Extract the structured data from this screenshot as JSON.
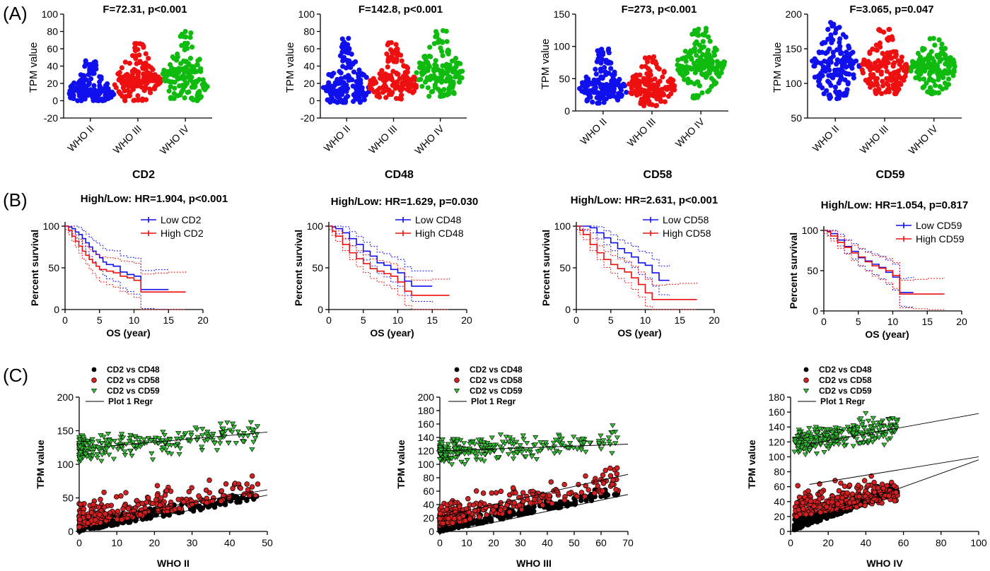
{
  "panel_labels": [
    "(A)",
    "(B)",
    "(C)"
  ],
  "colors": {
    "blue": "#1010ee",
    "red": "#ee1010",
    "green": "#10bb10",
    "black": "#000000",
    "red_marker": "#d42020",
    "green_marker": "#30c030"
  },
  "chart_data": [
    {
      "type": "scatter",
      "panel": "A",
      "title": "F=72.31, p<0.001",
      "gene": "CD2",
      "ylabel": "TPM value",
      "ylim": [
        -20,
        100
      ],
      "yticks": [
        -20,
        0,
        20,
        40,
        60,
        80,
        100
      ],
      "categories": [
        "WHO II",
        "WHO III",
        "WHO IV"
      ],
      "series": [
        {
          "name": "WHO II",
          "color": "#1010ee",
          "min": 0,
          "max": 46,
          "center": 10
        },
        {
          "name": "WHO III",
          "color": "#ee1010",
          "min": 0,
          "max": 66,
          "center": 22
        },
        {
          "name": "WHO IV",
          "color": "#10bb10",
          "min": 0,
          "max": 80,
          "center": 25
        }
      ]
    },
    {
      "type": "scatter",
      "panel": "A",
      "title": "F=142.8, p<0.001",
      "gene": "CD48",
      "ylabel": "TPM value",
      "ylim": [
        -20,
        100
      ],
      "yticks": [
        -20,
        0,
        20,
        40,
        60,
        80,
        100
      ],
      "categories": [
        "WHO II",
        "WHO III",
        "WHO IV"
      ],
      "series": [
        {
          "name": "WHO II",
          "color": "#1010ee",
          "min": -2,
          "max": 72,
          "center": 14
        },
        {
          "name": "WHO III",
          "color": "#ee1010",
          "min": 2,
          "max": 67,
          "center": 18
        },
        {
          "name": "WHO IV",
          "color": "#10bb10",
          "min": 5,
          "max": 81,
          "center": 32
        }
      ]
    },
    {
      "type": "scatter",
      "panel": "A",
      "title": "F=273, p<0.001",
      "gene": "CD58",
      "ylabel": "TPM value",
      "ylim": [
        0,
        150
      ],
      "yticks": [
        0,
        50,
        100,
        150
      ],
      "categories": [
        "WHO II",
        "WHO III",
        "WHO IV"
      ],
      "series": [
        {
          "name": "WHO II",
          "color": "#1010ee",
          "min": 12,
          "max": 96,
          "center": 35
        },
        {
          "name": "WHO III",
          "color": "#ee1010",
          "min": 8,
          "max": 84,
          "center": 38
        },
        {
          "name": "WHO IV",
          "color": "#10bb10",
          "min": 20,
          "max": 128,
          "center": 70
        }
      ]
    },
    {
      "type": "scatter",
      "panel": "A",
      "title": "F=3.065, p=0.047",
      "gene": "CD59",
      "ylabel": "TPM value",
      "ylim": [
        50,
        200
      ],
      "yticks": [
        50,
        100,
        150,
        200
      ],
      "categories": [
        "WHO II",
        "WHO III",
        "WHO IV"
      ],
      "series": [
        {
          "name": "WHO II",
          "color": "#1010ee",
          "min": 78,
          "max": 188,
          "center": 125
        },
        {
          "name": "WHO III",
          "color": "#ee1010",
          "min": 85,
          "max": 178,
          "center": 120
        },
        {
          "name": "WHO IV",
          "color": "#10bb10",
          "min": 85,
          "max": 165,
          "center": 122
        }
      ]
    },
    {
      "type": "line",
      "panel": "B",
      "title": "High/Low: HR=1.904,  p<0.001",
      "xlabel": "OS (year)",
      "ylabel": "Percent survival",
      "xlim": [
        0,
        20
      ],
      "ylim": [
        0,
        100
      ],
      "xticks": [
        0,
        5,
        10,
        15,
        20
      ],
      "yticks": [
        0,
        50,
        100
      ],
      "series": [
        {
          "name": "Low CD2",
          "color": "#1010ee",
          "x": [
            0,
            0.5,
            1,
            1.5,
            2,
            2.5,
            3,
            3.5,
            4,
            4.5,
            5,
            5.5,
            6,
            7,
            8,
            9,
            10,
            11,
            13,
            15
          ],
          "y": [
            100,
            99,
            97,
            93,
            90,
            85,
            80,
            75,
            70,
            66,
            62,
            57,
            54,
            52,
            45,
            42,
            40,
            24,
            24,
            24
          ]
        },
        {
          "name": "High CD2",
          "color": "#ee1010",
          "x": [
            0,
            0.5,
            1,
            1.5,
            2,
            2.5,
            3,
            3.5,
            4,
            4.5,
            5,
            6,
            7,
            8,
            9,
            10,
            11,
            13,
            15,
            17.5
          ],
          "y": [
            100,
            95,
            88,
            82,
            76,
            70,
            65,
            60,
            56,
            52,
            48,
            46,
            44,
            40,
            38,
            35,
            21,
            21,
            21,
            21
          ]
        }
      ]
    },
    {
      "type": "line",
      "panel": "B",
      "title": "High/Low: HR=1.629,  p=0.030",
      "xlabel": "OS (year)",
      "ylabel": "Percent survival",
      "xlim": [
        0,
        20
      ],
      "ylim": [
        0,
        100
      ],
      "xticks": [
        0,
        5,
        10,
        15,
        20
      ],
      "yticks": [
        0,
        50,
        100
      ],
      "series": [
        {
          "name": "Low CD48",
          "color": "#1010ee",
          "x": [
            0,
            0.5,
            1,
            2,
            3,
            4,
            5,
            6,
            7,
            8,
            9,
            10,
            11,
            12,
            15
          ],
          "y": [
            100,
            99,
            97,
            92,
            85,
            78,
            70,
            64,
            56,
            53,
            48,
            44,
            34,
            28,
            28
          ]
        },
        {
          "name": "High CD48",
          "color": "#ee1010",
          "x": [
            0,
            0.5,
            1,
            2,
            3,
            4,
            5,
            6,
            7,
            8,
            9,
            10,
            11,
            12,
            15,
            17.5
          ],
          "y": [
            100,
            94,
            88,
            78,
            68,
            61,
            55,
            49,
            46,
            43,
            40,
            33,
            22,
            17,
            17,
            17
          ]
        }
      ]
    },
    {
      "type": "line",
      "panel": "B",
      "title": "High/Low: HR=2.631,  p<0.001",
      "xlabel": "OS (year)",
      "ylabel": "Percent survival",
      "xlim": [
        0,
        20
      ],
      "ylim": [
        0,
        100
      ],
      "xticks": [
        0,
        5,
        10,
        15,
        20
      ],
      "yticks": [
        0,
        50,
        100
      ],
      "series": [
        {
          "name": "Low CD58",
          "color": "#1010ee",
          "x": [
            0,
            1,
            2,
            3,
            4,
            5,
            6,
            7,
            8,
            9,
            10,
            11,
            12,
            13.5
          ],
          "y": [
            100,
            100,
            98,
            92,
            86,
            80,
            73,
            68,
            63,
            56,
            53,
            44,
            35,
            35
          ]
        },
        {
          "name": "High CD58",
          "color": "#ee1010",
          "x": [
            0,
            0.5,
            1,
            2,
            3,
            4,
            5,
            6,
            7,
            8,
            9,
            10,
            11,
            13,
            15,
            17.5
          ],
          "y": [
            100,
            95,
            90,
            78,
            68,
            60,
            54,
            49,
            45,
            38,
            30,
            20,
            12,
            12,
            12,
            12
          ]
        }
      ]
    },
    {
      "type": "line",
      "panel": "B",
      "title": "High/Low: HR=1.054,  p=0.817",
      "xlabel": "OS (year)",
      "ylabel": "Percent survival",
      "xlim": [
        0,
        20
      ],
      "ylim": [
        0,
        100
      ],
      "xticks": [
        0,
        5,
        10,
        15,
        20
      ],
      "yticks": [
        0,
        50,
        100
      ],
      "series": [
        {
          "name": "Low CD59",
          "color": "#1010ee",
          "x": [
            0,
            0.5,
            1,
            2,
            3,
            4,
            5,
            6,
            7,
            8,
            9,
            10,
            11,
            12,
            13
          ],
          "y": [
            100,
            99,
            96,
            88,
            80,
            74,
            66,
            62,
            58,
            54,
            48,
            42,
            23,
            23,
            23
          ]
        },
        {
          "name": "High CD59",
          "color": "#ee1010",
          "x": [
            0,
            0.5,
            1,
            2,
            3,
            4,
            5,
            6,
            7,
            8,
            9,
            10,
            11,
            13,
            15,
            17.5
          ],
          "y": [
            100,
            98,
            93,
            85,
            79,
            72,
            67,
            61,
            56,
            53,
            50,
            44,
            21,
            21,
            21,
            21
          ]
        }
      ]
    },
    {
      "type": "scatter",
      "panel": "C",
      "xlabel": "WHO II",
      "ylabel": "TPM value",
      "xlim": [
        0,
        50
      ],
      "ylim": [
        0,
        200
      ],
      "xticks": [
        0,
        10,
        20,
        30,
        40,
        50
      ],
      "yticks": [
        0,
        50,
        100,
        150,
        200
      ],
      "legend": [
        "CD2 vs CD48",
        "CD2 vs CD58",
        "CD2 vs CD59",
        "Plot 1 Regr"
      ],
      "regressions": [
        {
          "series": "CD2 vs CD59",
          "x": [
            8,
            50
          ],
          "y": [
            127,
            148
          ]
        },
        {
          "series": "CD2 vs CD58",
          "x": [
            8,
            50
          ],
          "y": [
            22,
            62
          ]
        },
        {
          "series": "CD2 vs CD48",
          "x": [
            8,
            50
          ],
          "y": [
            8,
            54
          ]
        }
      ],
      "clouds": [
        {
          "series": "CD2 vs CD48",
          "color": "#000000",
          "slope": 1.0,
          "intercept": 2
        },
        {
          "series": "CD2 vs CD58",
          "color": "#d42020",
          "slope": 1.0,
          "intercept": 20
        },
        {
          "series": "CD2 vs CD59",
          "color": "#30c030",
          "slope": 0.5,
          "intercept": 122
        }
      ]
    },
    {
      "type": "scatter",
      "panel": "C",
      "xlabel": "WHO III",
      "ylabel": "TPM value",
      "xlim": [
        0,
        70
      ],
      "ylim": [
        0,
        200
      ],
      "xticks": [
        0,
        10,
        20,
        30,
        40,
        50,
        60,
        70
      ],
      "yticks": [
        0,
        20,
        40,
        60,
        80,
        100,
        120,
        140,
        160,
        180,
        200
      ],
      "legend": [
        "CD2 vs CD48",
        "CD2 vs CD58",
        "CD2 vs CD59",
        "Plot 1 Regr"
      ],
      "regressions": [
        {
          "series": "CD2 vs CD59",
          "x": [
            0,
            70
          ],
          "y": [
            120,
            130
          ]
        },
        {
          "series": "CD2 vs CD58",
          "x": [
            0,
            70
          ],
          "y": [
            22,
            85
          ]
        },
        {
          "series": "CD2 vs CD48",
          "x": [
            10,
            70
          ],
          "y": [
            5,
            55
          ]
        }
      ],
      "clouds": [
        {
          "series": "CD2 vs CD48",
          "color": "#000000",
          "slope": 0.8,
          "intercept": 0
        },
        {
          "series": "CD2 vs CD58",
          "color": "#d42020",
          "slope": 0.8,
          "intercept": 25
        },
        {
          "series": "CD2 vs CD59",
          "color": "#30c030",
          "slope": 0.2,
          "intercept": 120
        }
      ]
    },
    {
      "type": "scatter",
      "panel": "C",
      "xlabel": "WHO IV",
      "ylabel": "TPM value",
      "xlim": [
        0,
        100
      ],
      "ylim": [
        0,
        180
      ],
      "xticks": [
        0,
        20,
        40,
        60,
        80,
        100
      ],
      "yticks": [
        0,
        20,
        40,
        60,
        80,
        100,
        120,
        140,
        160,
        180
      ],
      "legend": [
        "CD2 vs CD48",
        "CD2 vs CD58",
        "CD2 vs CD59",
        "Plot 1 Regr"
      ],
      "regressions": [
        {
          "series": "CD2 vs CD59",
          "x": [
            10,
            100
          ],
          "y": [
            117,
            158
          ]
        },
        {
          "series": "CD2 vs CD58",
          "x": [
            10,
            100
          ],
          "y": [
            63,
            100
          ]
        },
        {
          "series": "CD2 vs CD48",
          "x": [
            5,
            100
          ],
          "y": [
            10,
            96
          ]
        }
      ],
      "clouds": [
        {
          "series": "CD2 vs CD48",
          "color": "#000000",
          "slope": 0.9,
          "intercept": 8
        },
        {
          "series": "CD2 vs CD58",
          "color": "#d42020",
          "slope": 0.4,
          "intercept": 62
        },
        {
          "series": "CD2 vs CD59",
          "color": "#30c030",
          "slope": 0.4,
          "intercept": 118
        }
      ]
    }
  ]
}
